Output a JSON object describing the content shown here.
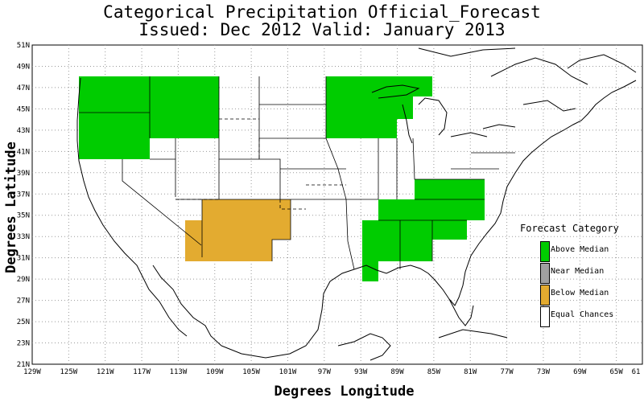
{
  "title_line1": "Categorical Precipitation Official_Forecast",
  "title_line2": "Issued: Dec 2012 Valid: January 2013",
  "ylabel": "Degrees Latitude",
  "xlabel": "Degrees Longitude",
  "lat_ticks": [
    "21N",
    "23N",
    "25N",
    "27N",
    "29N",
    "31N",
    "33N",
    "35N",
    "37N",
    "39N",
    "41N",
    "43N",
    "45N",
    "47N",
    "49N",
    "51N"
  ],
  "lon_ticks": [
    "129W",
    "125W",
    "121W",
    "117W",
    "113W",
    "109W",
    "105W",
    "101W",
    "97W",
    "93W",
    "89W",
    "85W",
    "81W",
    "77W",
    "73W",
    "69W",
    "65W",
    "61"
  ],
  "legend": {
    "title": "Forecast Category",
    "items": [
      {
        "label": "Above Median",
        "color": "#00cc00"
      },
      {
        "label": "Near Median",
        "color": "#a0a0a0"
      },
      {
        "label": "Below Median",
        "color": "#e3ab30"
      },
      {
        "label": "Equal Chances",
        "color": "#ffffff"
      }
    ]
  },
  "colors": {
    "above": "#00cc00",
    "below": "#e3ab30",
    "grid": "#999999"
  }
}
